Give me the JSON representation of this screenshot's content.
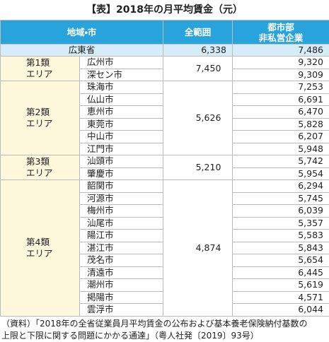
{
  "title": "【表】2018年の月平均賃金（元）",
  "header": {
    "region": "地域・市",
    "all": "全範囲",
    "urban": [
      "都市部",
      "非私営企業"
    ]
  },
  "province": {
    "name": "広東省",
    "all": "6,338",
    "urban": "7,486"
  },
  "groups": [
    {
      "label": [
        "第1類",
        "エリア"
      ],
      "all": "7,450",
      "cities": [
        {
          "name": "広州市",
          "urban": "9,320"
        },
        {
          "name": "深セン市",
          "urban": "9,309"
        }
      ]
    },
    {
      "label": [
        "第2類",
        "エリア"
      ],
      "all": "5,626",
      "cities": [
        {
          "name": "珠海市",
          "urban": "7,253"
        },
        {
          "name": "仏山市",
          "urban": "6,691"
        },
        {
          "name": "恵州市",
          "urban": "6,470"
        },
        {
          "name": "東莞市",
          "urban": "5,828"
        },
        {
          "name": "中山市",
          "urban": "6,207"
        },
        {
          "name": "江門市",
          "urban": "5,948"
        }
      ]
    },
    {
      "label": [
        "第3類",
        "エリア"
      ],
      "all": "5,210",
      "cities": [
        {
          "name": "汕頭市",
          "urban": "5,742"
        },
        {
          "name": "肇慶市",
          "urban": "5,954"
        }
      ]
    },
    {
      "label": [
        "第4類",
        "エリア"
      ],
      "all": "4,874",
      "cities": [
        {
          "name": "韶関市",
          "urban": "6,294"
        },
        {
          "name": "河源市",
          "urban": "5,745"
        },
        {
          "name": "梅州市",
          "urban": "6,039"
        },
        {
          "name": "汕尾市",
          "urban": "5,357"
        },
        {
          "name": "陽江市",
          "urban": "5,583"
        },
        {
          "name": "湛江市",
          "urban": "5,843"
        },
        {
          "name": "茂名市",
          "urban": "5,654"
        },
        {
          "name": "清遠市",
          "urban": "6,445"
        },
        {
          "name": "潮州市",
          "urban": "5,619"
        },
        {
          "name": "掲陽市",
          "urban": "4,571"
        },
        {
          "name": "雲浮市",
          "urban": "6,044"
        }
      ]
    }
  ],
  "footnote": [
    "（資料）「2018年の全省従業員月平均賃金の公布および基本養老保険納付基数の",
    "上限と下限に関する問題にかかる通達」（粤人社発〔2019〕93号）"
  ]
}
